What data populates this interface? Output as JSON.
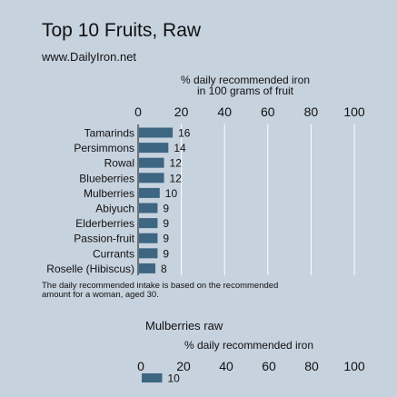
{
  "header": {
    "title": "Top 10 Fruits, Raw",
    "subtitle": "www.DailyIron.net"
  },
  "footnote": "The daily recommended intake is based on the recommended amount for a woman, aged 30.",
  "colors": {
    "background": "#c6d2de",
    "bar": "#3d6682",
    "grid": "#ffffff",
    "text": "#111111"
  },
  "chart_data": [
    {
      "type": "bar",
      "orientation": "horizontal",
      "xlabel_lines": [
        "% daily recommended iron",
        "in 100 grams of fruit"
      ],
      "xlim": [
        0,
        100
      ],
      "xticks": [
        0,
        20,
        40,
        60,
        80,
        100
      ],
      "grid": true,
      "categories": [
        "Tamarinds",
        "Persimmons",
        "Rowal",
        "Blueberries",
        "Mulberries",
        "Abiyuch",
        "Elderberries",
        "Passion-fruit",
        "Currants",
        "Roselle (Hibiscus)"
      ],
      "values": [
        16,
        14,
        12,
        12,
        10,
        9,
        9,
        9,
        9,
        8
      ]
    },
    {
      "type": "bar",
      "orientation": "horizontal",
      "title": "Mulberries raw",
      "xlabel_lines": [
        "% daily recommended iron"
      ],
      "xlim": [
        0,
        100
      ],
      "xticks": [
        0,
        20,
        40,
        60,
        80,
        100
      ],
      "grid": true,
      "categories": [
        ""
      ],
      "values": [
        10
      ]
    }
  ]
}
